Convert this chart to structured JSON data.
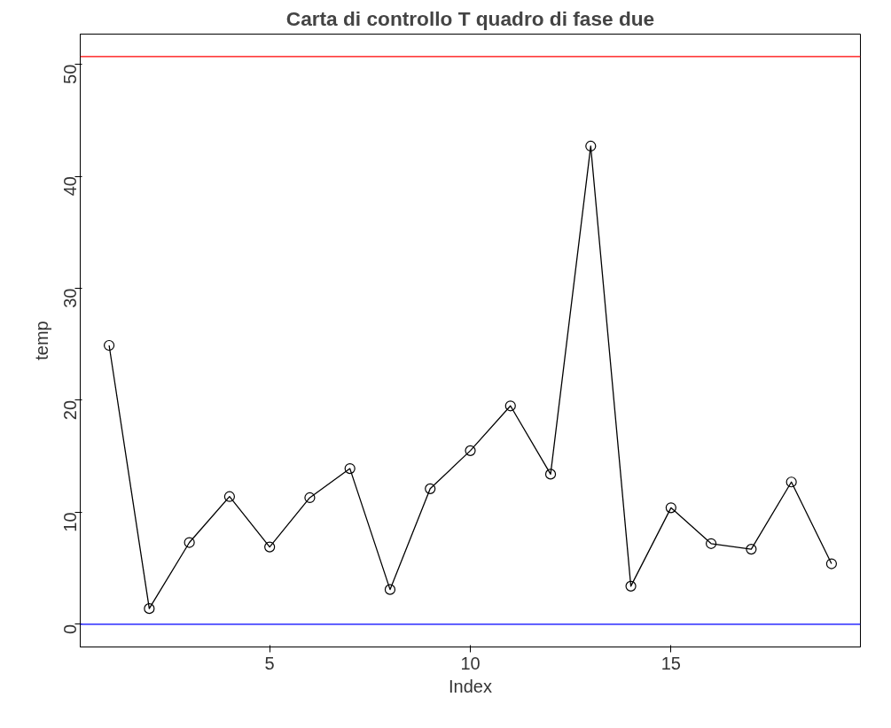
{
  "chart_data": {
    "type": "line",
    "title": "Carta di controllo T quadro di fase due",
    "xlabel": "Index",
    "ylabel": "temp",
    "x": [
      1,
      2,
      3,
      4,
      5,
      6,
      7,
      8,
      9,
      10,
      11,
      12,
      13,
      14,
      15,
      16,
      17,
      18,
      19
    ],
    "series": [
      {
        "color": "#000000",
        "values": [
          24.9,
          1.4,
          7.3,
          11.4,
          6.9,
          11.3,
          13.9,
          3.1,
          12.1,
          15.5,
          19.5,
          13.4,
          42.7,
          3.4,
          10.4,
          7.2,
          6.7,
          12.7,
          5.4
        ]
      }
    ],
    "xlim": [
      0.28,
      19.72
    ],
    "ylim": [
      -2.03,
      52.7
    ],
    "xticks": [
      5,
      10,
      15
    ],
    "yticks": [
      0,
      10,
      20,
      30,
      40,
      50
    ],
    "ref_lines": [
      {
        "axis": "y",
        "value": 50.7,
        "color": "#ff0000"
      },
      {
        "axis": "y",
        "value": 0,
        "color": "#0000ff"
      }
    ],
    "marker": "circle",
    "line_style": "solid",
    "grid": false
  }
}
